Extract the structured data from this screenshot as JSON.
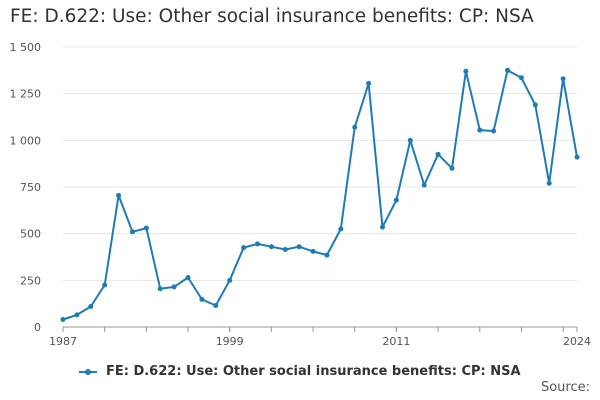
{
  "title": "FE: D.622: Use: Other social insurance benefits: CP: NSA",
  "source_label": "Source:",
  "colors": {
    "series": "#1f7bb6",
    "grid": "#e6e6e6",
    "axis": "#999999"
  },
  "chart_data": {
    "type": "line",
    "title": "FE: D.622: Use: Other social insurance benefits: CP: NSA",
    "xlabel": "",
    "ylabel": "",
    "ylim": [
      0,
      1500
    ],
    "xlim": [
      1987,
      2024
    ],
    "y_ticks": [
      {
        "value": 0,
        "label": "0"
      },
      {
        "value": 250,
        "label": "250"
      },
      {
        "value": 500,
        "label": "500"
      },
      {
        "value": 750,
        "label": "750"
      },
      {
        "value": 1000,
        "label": "1 000"
      },
      {
        "value": 1250,
        "label": "1 250"
      },
      {
        "value": 1500,
        "label": "1 500"
      }
    ],
    "x_ticks": [
      {
        "value": 1987,
        "label": "1987"
      },
      {
        "value": 1999,
        "label": "1999"
      },
      {
        "value": 2011,
        "label": "2011"
      },
      {
        "value": 2024,
        "label": "2024"
      }
    ],
    "grid": true,
    "legend_position": "bottom",
    "series": [
      {
        "name": "FE: D.622: Use: Other social insurance benefits: CP: NSA",
        "x": [
          1987,
          1988,
          1989,
          1990,
          1991,
          1992,
          1993,
          1994,
          1995,
          1996,
          1997,
          1998,
          1999,
          2000,
          2001,
          2002,
          2003,
          2004,
          2005,
          2006,
          2007,
          2008,
          2009,
          2010,
          2011,
          2012,
          2013,
          2014,
          2015,
          2016,
          2017,
          2018,
          2019,
          2020,
          2021,
          2022,
          2023,
          2024
        ],
        "values": [
          40,
          65,
          110,
          225,
          705,
          510,
          530,
          205,
          215,
          265,
          148,
          115,
          250,
          425,
          445,
          430,
          415,
          430,
          405,
          385,
          525,
          1070,
          1305,
          535,
          680,
          1000,
          760,
          925,
          850,
          1370,
          1055,
          1050,
          1375,
          1335,
          1190,
          770,
          1330,
          910
        ]
      }
    ]
  }
}
